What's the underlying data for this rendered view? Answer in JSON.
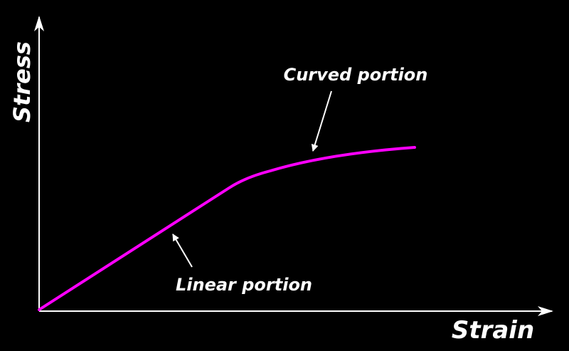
{
  "axes": {
    "y_label": "Stress",
    "x_label": "Strain"
  },
  "annotations": [
    {
      "label": "Curved portion"
    },
    {
      "label": "Linear portion"
    }
  ]
}
